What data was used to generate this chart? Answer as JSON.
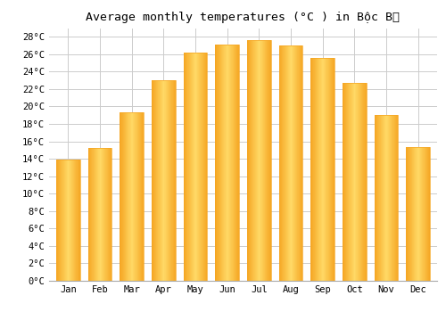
{
  "title": "Average monthly temperatures (°C ) in Bộc Bố",
  "months": [
    "Jan",
    "Feb",
    "Mar",
    "Apr",
    "May",
    "Jun",
    "Jul",
    "Aug",
    "Sep",
    "Oct",
    "Nov",
    "Dec"
  ],
  "temperatures": [
    13.9,
    15.2,
    19.3,
    23.0,
    26.2,
    27.1,
    27.6,
    27.0,
    25.6,
    22.7,
    19.0,
    15.3
  ],
  "bar_color_center": "#FFD966",
  "bar_color_edge": "#F5A623",
  "background_color": "#FFFFFF",
  "grid_color": "#CCCCCC",
  "ylim": [
    0,
    29
  ],
  "yticks": [
    0,
    2,
    4,
    6,
    8,
    10,
    12,
    14,
    16,
    18,
    20,
    22,
    24,
    26,
    28
  ],
  "title_fontsize": 9.5,
  "tick_fontsize": 7.5,
  "font_family": "monospace"
}
